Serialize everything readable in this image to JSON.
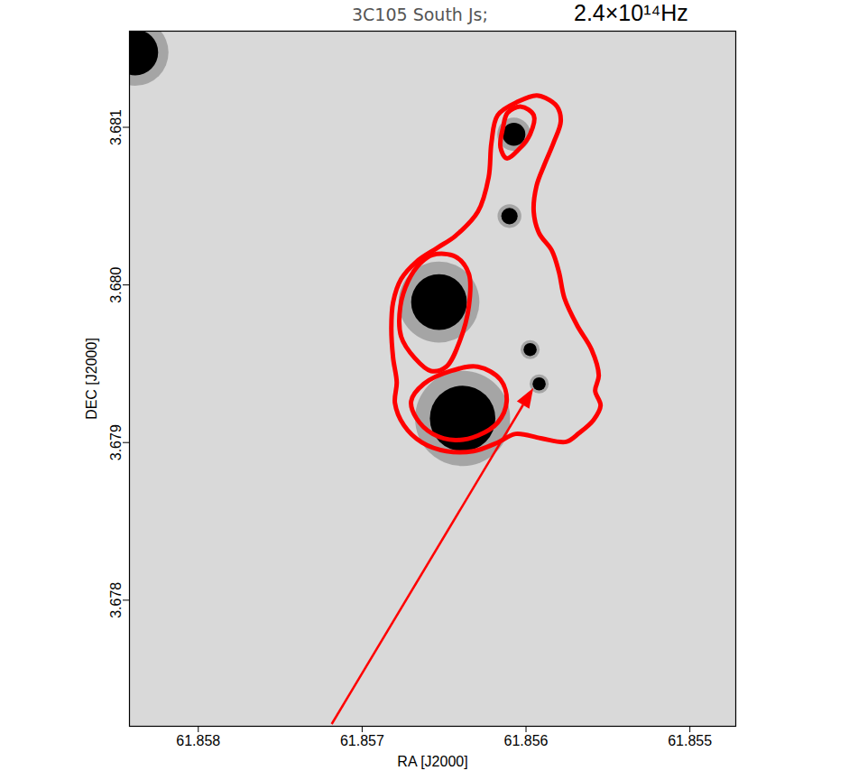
{
  "chart_data": {
    "type": "contour_image",
    "title": "3C105 South Js;",
    "subtitle": "2.4×10¹⁴Hz",
    "x_label": "RA [J2000]",
    "y_label": "DEC [J2000]",
    "xlim": [
      61.85842,
      61.85472
    ],
    "ylim": [
      3.6772,
      3.68161
    ],
    "xticks": [
      61.858,
      61.857,
      61.856,
      61.855
    ],
    "yticks": [
      3.678,
      3.679,
      {
        "value": 3.68,
        "label": "3.680"
      },
      3.681
    ],
    "contours": [
      {
        "color": "#ff0000",
        "x": [
          61.855881,
          61.85581,
          61.855788,
          61.855832,
          61.855887,
          61.855936,
          61.855953,
          61.85592,
          61.855843,
          61.855799,
          61.855766,
          61.855688,
          61.8556,
          61.855556,
          61.855578,
          61.855545,
          61.855589,
          61.855677,
          61.855755,
          61.855909,
          61.856063,
          61.856173,
          61.856321,
          61.856487,
          61.856635,
          61.856745,
          61.8568,
          61.856789,
          61.856811,
          61.856822,
          61.856811,
          61.856762,
          61.856668,
          61.856542,
          61.856431,
          61.856294,
          61.856228,
          61.856211,
          61.856173,
          61.856046,
          61.855936
        ],
        "y": [
          3.681186,
          3.681131,
          3.681038,
          3.680902,
          3.680765,
          3.680628,
          3.680464,
          3.680328,
          3.680219,
          3.680082,
          3.679918,
          3.679743,
          3.67959,
          3.679426,
          3.679328,
          3.679235,
          3.679142,
          3.67906,
          3.679005,
          3.679027,
          3.679055,
          3.679,
          3.678945,
          3.678945,
          3.679,
          3.679109,
          3.679251,
          3.679382,
          3.679536,
          3.679727,
          3.679891,
          3.680038,
          3.680148,
          3.680235,
          3.680311,
          3.680464,
          3.680683,
          3.680902,
          3.681077,
          3.681164,
          3.681202
        ]
      },
      {
        "color": "#ff0000",
        "x": [
          61.85614,
          61.856112,
          61.85603,
          61.855953,
          61.855975,
          61.856046,
          61.856118,
          61.856156
        ],
        "y": [
          3.681,
          3.681093,
          3.681131,
          3.681077,
          3.680956,
          3.680858,
          3.680803,
          3.680874
        ]
      },
      {
        "color": "#ff0000",
        "x": [
          61.856569,
          61.856431,
          61.856349,
          61.856349,
          61.856404,
          61.856487,
          61.85658,
          61.856679,
          61.856762,
          61.856767,
          61.856718,
          61.856646
        ],
        "y": [
          3.680191,
          3.68018,
          3.680071,
          3.679863,
          3.679645,
          3.679481,
          3.679454,
          3.679536,
          3.679672,
          3.679863,
          3.680027,
          3.680137
        ]
      },
      {
        "color": "#ff0000",
        "x": [
          61.856624,
          61.856459,
          61.856294,
          61.856156,
          61.856118,
          61.856173,
          61.856294,
          61.856431,
          61.856569,
          61.856668,
          61.856701
        ],
        "y": [
          3.679372,
          3.679454,
          3.679481,
          3.679399,
          3.679262,
          3.679126,
          3.679044,
          3.679016,
          3.679055,
          3.679153,
          3.679262
        ]
      }
    ],
    "sources": {
      "x": [
        61.856531,
        61.856387,
        61.856074,
        61.855975,
        61.85592,
        61.858385,
        61.856101
      ],
      "y": [
        3.679891,
        3.679153,
        3.680956,
        3.67959,
        3.679372,
        3.681475,
        3.680437
      ],
      "size": [
        0.00017,
        0.0002,
        7e-05,
        4e-05,
        4e-05,
        0.00014,
        5e-05
      ],
      "color": "#000000"
    },
    "arrow": {
      "x": 61.855953,
      "y": 3.679344,
      "color": "#ff0000"
    }
  }
}
